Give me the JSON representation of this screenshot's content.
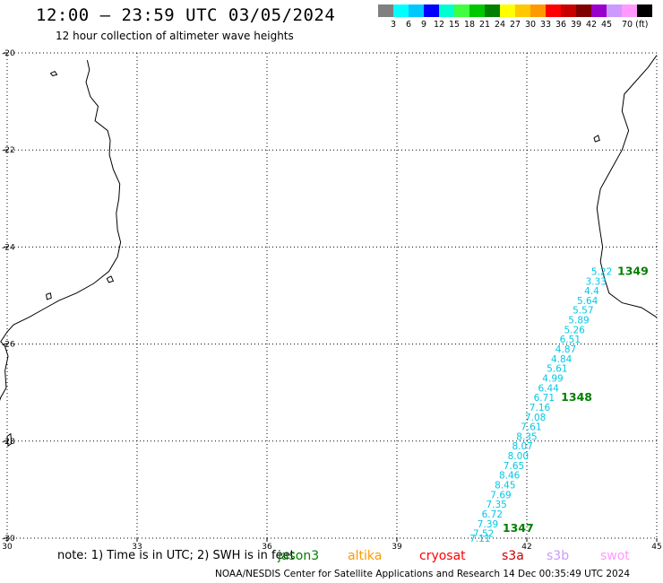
{
  "header": {
    "title": "12:00 – 23:59 UTC 03/05/2024",
    "subtitle": "12 hour collection of altimeter wave heights"
  },
  "colorbar": {
    "colors": [
      "#808080",
      "#00ffff",
      "#00c8ff",
      "#0000ff",
      "#00ffd0",
      "#40ff40",
      "#00c800",
      "#008000",
      "#ffff00",
      "#ffc800",
      "#ff9900",
      "#ff0000",
      "#c80000",
      "#800000",
      "#9900cc",
      "#cc99ff",
      "#ff99ff",
      "#000000"
    ],
    "labels": [
      "3",
      "6",
      "9",
      "12",
      "15",
      "18",
      "21",
      "24",
      "27",
      "30",
      "33",
      "36",
      "39",
      "42",
      "45",
      "70 (ft)"
    ]
  },
  "chart_data": {
    "type": "scatter",
    "xlim": [
      30,
      45
    ],
    "ylim": [
      -30,
      -20
    ],
    "x_ticks": [
      "30",
      "33",
      "36",
      "39",
      "42",
      "45"
    ],
    "y_ticks": [
      "-20",
      "-22",
      "-24",
      "-26",
      "-28",
      "-30"
    ],
    "grid": true,
    "points": [
      {
        "lon": 43.73,
        "lat": -24.5,
        "label": "5.22"
      },
      {
        "lon": 43.6,
        "lat": -24.7,
        "label": "3.33"
      },
      {
        "lon": 43.5,
        "lat": -24.9,
        "label": "4.4"
      },
      {
        "lon": 43.4,
        "lat": -25.1,
        "label": "5.64"
      },
      {
        "lon": 43.3,
        "lat": -25.3,
        "label": "5.57"
      },
      {
        "lon": 43.2,
        "lat": -25.5,
        "label": "5.89"
      },
      {
        "lon": 43.1,
        "lat": -25.7,
        "label": "5.26"
      },
      {
        "lon": 43.0,
        "lat": -25.9,
        "label": "6.51"
      },
      {
        "lon": 42.9,
        "lat": -26.1,
        "label": "4.87"
      },
      {
        "lon": 42.8,
        "lat": -26.3,
        "label": "4.84"
      },
      {
        "lon": 42.7,
        "lat": -26.5,
        "label": "5.61"
      },
      {
        "lon": 42.6,
        "lat": -26.7,
        "label": "4.99"
      },
      {
        "lon": 42.5,
        "lat": -26.9,
        "label": "6.44"
      },
      {
        "lon": 42.4,
        "lat": -27.1,
        "label": "6.71"
      },
      {
        "lon": 42.3,
        "lat": -27.3,
        "label": "7.16"
      },
      {
        "lon": 42.2,
        "lat": -27.5,
        "label": "7.08"
      },
      {
        "lon": 42.1,
        "lat": -27.7,
        "label": "7.61"
      },
      {
        "lon": 42.0,
        "lat": -27.9,
        "label": "8.35"
      },
      {
        "lon": 41.9,
        "lat": -28.1,
        "label": "8.07"
      },
      {
        "lon": 41.8,
        "lat": -28.3,
        "label": "8.00"
      },
      {
        "lon": 41.7,
        "lat": -28.5,
        "label": "7.65"
      },
      {
        "lon": 41.6,
        "lat": -28.7,
        "label": "8.46"
      },
      {
        "lon": 41.5,
        "lat": -28.9,
        "label": "8.45"
      },
      {
        "lon": 41.4,
        "lat": -29.1,
        "label": "7.69"
      },
      {
        "lon": 41.3,
        "lat": -29.3,
        "label": "7.35"
      },
      {
        "lon": 41.2,
        "lat": -29.5,
        "label": "6.72"
      },
      {
        "lon": 41.1,
        "lat": -29.7,
        "label": "7.39"
      },
      {
        "lon": 41.0,
        "lat": -29.9,
        "label": "7.52"
      },
      {
        "lon": 40.92,
        "lat": -30.0,
        "label": "7.11"
      }
    ],
    "point_color": "#00c8e6",
    "pass_labels": [
      {
        "lon": 44.45,
        "lat": -24.5,
        "label": "1349"
      },
      {
        "lon": 43.15,
        "lat": -27.1,
        "label": "1348"
      },
      {
        "lon": 41.8,
        "lat": -29.8,
        "label": "1347"
      }
    ],
    "pass_color": "#008000",
    "coastlines": [
      [
        [
          31.85,
          -20.15
        ],
        [
          31.9,
          -20.35
        ],
        [
          31.82,
          -20.6
        ],
        [
          31.92,
          -20.9
        ],
        [
          32.1,
          -21.1
        ],
        [
          32.03,
          -21.4
        ],
        [
          32.32,
          -21.6
        ],
        [
          32.38,
          -21.8
        ],
        [
          32.36,
          -22.1
        ],
        [
          32.45,
          -22.4
        ],
        [
          32.6,
          -22.7
        ],
        [
          32.58,
          -23.0
        ],
        [
          32.52,
          -23.3
        ],
        [
          32.55,
          -23.65
        ],
        [
          32.62,
          -23.9
        ],
        [
          32.55,
          -24.2
        ],
        [
          32.35,
          -24.5
        ],
        [
          32.0,
          -24.75
        ],
        [
          31.6,
          -24.95
        ],
        [
          31.2,
          -25.1
        ],
        [
          30.9,
          -25.25
        ],
        [
          30.5,
          -25.45
        ],
        [
          30.15,
          -25.6
        ],
        [
          30.0,
          -25.75
        ],
        [
          29.85,
          -25.95
        ],
        [
          29.95,
          -26.05
        ],
        [
          30.02,
          -26.25
        ],
        [
          29.95,
          -26.55
        ],
        [
          29.98,
          -26.9
        ],
        [
          29.85,
          -27.1
        ],
        [
          29.7,
          -27.5
        ],
        [
          29.55,
          -27.9
        ],
        [
          29.4,
          -28.3
        ],
        [
          29.05,
          -28.6
        ],
        [
          28.5,
          -29.0
        ],
        [
          28.0,
          -29.4
        ],
        [
          27.4,
          -29.8
        ],
        [
          27.0,
          -30.0
        ]
      ],
      [
        [
          45.0,
          -20.05
        ],
        [
          44.8,
          -20.3
        ],
        [
          44.5,
          -20.6
        ],
        [
          44.25,
          -20.85
        ],
        [
          44.2,
          -21.2
        ],
        [
          44.35,
          -21.6
        ],
        [
          44.2,
          -22.0
        ],
        [
          43.95,
          -22.4
        ],
        [
          43.7,
          -22.8
        ],
        [
          43.62,
          -23.2
        ],
        [
          43.68,
          -23.6
        ],
        [
          43.75,
          -24.0
        ],
        [
          43.7,
          -24.3
        ],
        [
          43.78,
          -24.6
        ],
        [
          43.9,
          -24.95
        ],
        [
          44.2,
          -25.15
        ],
        [
          44.65,
          -25.25
        ],
        [
          45.0,
          -25.45
        ]
      ]
    ],
    "islands": [
      [
        [
          31.0,
          -20.42
        ],
        [
          31.1,
          -20.38
        ],
        [
          31.15,
          -20.45
        ],
        [
          31.05,
          -20.47
        ],
        [
          31.0,
          -20.42
        ]
      ],
      [
        [
          30.9,
          -24.98
        ],
        [
          31.0,
          -24.95
        ],
        [
          31.02,
          -25.05
        ],
        [
          30.92,
          -25.08
        ],
        [
          30.9,
          -24.98
        ]
      ],
      [
        [
          28.85,
          -27.0
        ],
        [
          28.95,
          -26.95
        ],
        [
          28.98,
          -27.25
        ],
        [
          28.9,
          -27.3
        ],
        [
          28.85,
          -27.0
        ]
      ],
      [
        [
          30.0,
          -27.9
        ],
        [
          30.08,
          -27.85
        ],
        [
          30.1,
          -28.05
        ],
        [
          30.02,
          -28.1
        ],
        [
          30.0,
          -27.9
        ]
      ],
      [
        [
          32.3,
          -24.65
        ],
        [
          32.4,
          -24.6
        ],
        [
          32.45,
          -24.7
        ],
        [
          32.35,
          -24.73
        ],
        [
          32.3,
          -24.65
        ]
      ],
      [
        [
          43.55,
          -21.75
        ],
        [
          43.65,
          -21.7
        ],
        [
          43.68,
          -21.8
        ],
        [
          43.58,
          -21.83
        ],
        [
          43.55,
          -21.75
        ]
      ]
    ]
  },
  "legend": {
    "note": "note:  1) Time is in UTC;  2) SWH is in feet",
    "satellites": [
      {
        "name": "jason3",
        "color": "#008000"
      },
      {
        "name": "altika",
        "color": "#ff9900"
      },
      {
        "name": "cryosat",
        "color": "#ff0000"
      },
      {
        "name": "s3a",
        "color": "#cc0000"
      },
      {
        "name": "s3b",
        "color": "#cc99ff"
      },
      {
        "name": "swot",
        "color": "#ff99ff"
      }
    ]
  },
  "footer": {
    "credit": "NOAA/NESDIS Center for Satellite Applications and Research     14 Dec 00:35:49 UTC 2024"
  }
}
